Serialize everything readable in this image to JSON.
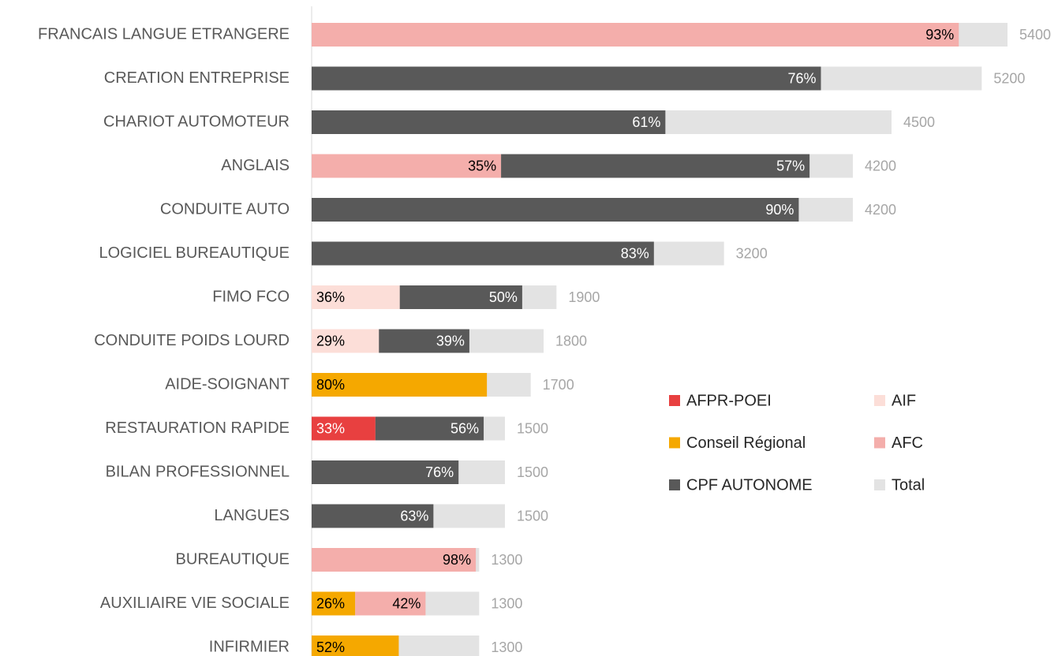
{
  "chart_data": {
    "type": "bar",
    "orientation": "horizontal",
    "stacked": true,
    "categories": [
      "FRANCAIS LANGUE ETRANGERE",
      "CREATION ENTREPRISE",
      "CHARIOT AUTOMOTEUR",
      "ANGLAIS",
      "CONDUITE AUTO",
      "LOGICIEL BUREAUTIQUE",
      "FIMO FCO",
      "CONDUITE POIDS LOURD",
      "AIDE-SOIGNANT",
      "RESTAURATION RAPIDE",
      "BILAN PROFESSIONNEL",
      "LANGUES",
      "BUREAUTIQUE",
      "AUXILIAIRE VIE SOCIALE",
      "INFIRMIER"
    ],
    "series": [
      {
        "name": "AFPR-POEI",
        "color": "#e84040",
        "values": [
          null,
          null,
          null,
          null,
          null,
          null,
          null,
          null,
          null,
          33,
          null,
          null,
          null,
          null,
          null
        ],
        "value_labels": [
          null,
          null,
          null,
          null,
          null,
          null,
          null,
          null,
          null,
          "33%",
          null,
          null,
          null,
          null,
          null
        ]
      },
      {
        "name": "Conseil Régional",
        "color": "#f5a800",
        "values": [
          null,
          null,
          null,
          null,
          null,
          null,
          null,
          null,
          80,
          null,
          null,
          null,
          null,
          26,
          52
        ],
        "value_labels": [
          null,
          null,
          null,
          null,
          null,
          null,
          null,
          null,
          "80%",
          null,
          null,
          null,
          null,
          "26%",
          "52%"
        ]
      },
      {
        "name": "AIF",
        "color": "#fcded8",
        "values": [
          null,
          null,
          null,
          null,
          null,
          null,
          36,
          29,
          null,
          null,
          null,
          null,
          null,
          null,
          null
        ],
        "value_labels": [
          null,
          null,
          null,
          null,
          null,
          null,
          "36%",
          "29%",
          null,
          null,
          null,
          null,
          null,
          null,
          null
        ]
      },
      {
        "name": "AFC",
        "color": "#f4aeab",
        "values": [
          93,
          null,
          null,
          35,
          null,
          null,
          null,
          null,
          null,
          null,
          null,
          null,
          98,
          42,
          null
        ],
        "value_labels": [
          "93%",
          null,
          null,
          "35%",
          null,
          null,
          null,
          null,
          null,
          null,
          null,
          null,
          "98%",
          "42%",
          null
        ]
      },
      {
        "name": "CPF AUTONOME",
        "color": "#595959",
        "values": [
          null,
          76,
          61,
          57,
          90,
          83,
          50,
          39,
          null,
          56,
          76,
          63,
          null,
          null,
          null
        ],
        "value_labels": [
          null,
          "76%",
          "61%",
          "57%",
          "90%",
          "83%",
          "50%",
          "39%",
          null,
          "56%",
          "76%",
          "63%",
          null,
          null,
          null
        ]
      },
      {
        "name": "Total",
        "color": "#e3e3e3",
        "values": [
          5400,
          5200,
          4500,
          4200,
          4200,
          3200,
          1900,
          1800,
          1700,
          1500,
          1500,
          1500,
          1300,
          1300,
          1300
        ]
      }
    ]
  }
}
